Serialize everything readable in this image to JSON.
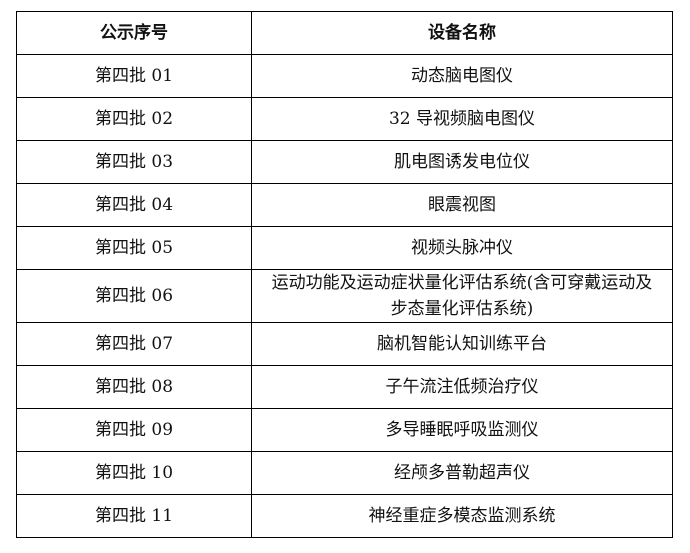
{
  "table": {
    "headers": [
      "公示序号",
      "设备名称"
    ],
    "rows": [
      {
        "id": "第四批 01",
        "name": "动态脑电图仪"
      },
      {
        "id": "第四批 02",
        "name": "32 导视频脑电图仪"
      },
      {
        "id": "第四批 03",
        "name": "肌电图诱发电位仪"
      },
      {
        "id": "第四批 04",
        "name": "眼震视图"
      },
      {
        "id": "第四批 05",
        "name": "视频头脉冲仪"
      },
      {
        "id": "第四批 06",
        "name": "运动功能及运动症状量化评估系统(含可穿戴运动及步态量化评估系统)"
      },
      {
        "id": "第四批 07",
        "name": "脑机智能认知训练平台"
      },
      {
        "id": "第四批 08",
        "name": "子午流注低频治疗仪"
      },
      {
        "id": "第四批 09",
        "name": "多导睡眠呼吸监测仪"
      },
      {
        "id": "第四批 10",
        "name": "经颅多普勒超声仪"
      },
      {
        "id": "第四批 11",
        "name": "神经重症多模态监测系统"
      }
    ]
  }
}
